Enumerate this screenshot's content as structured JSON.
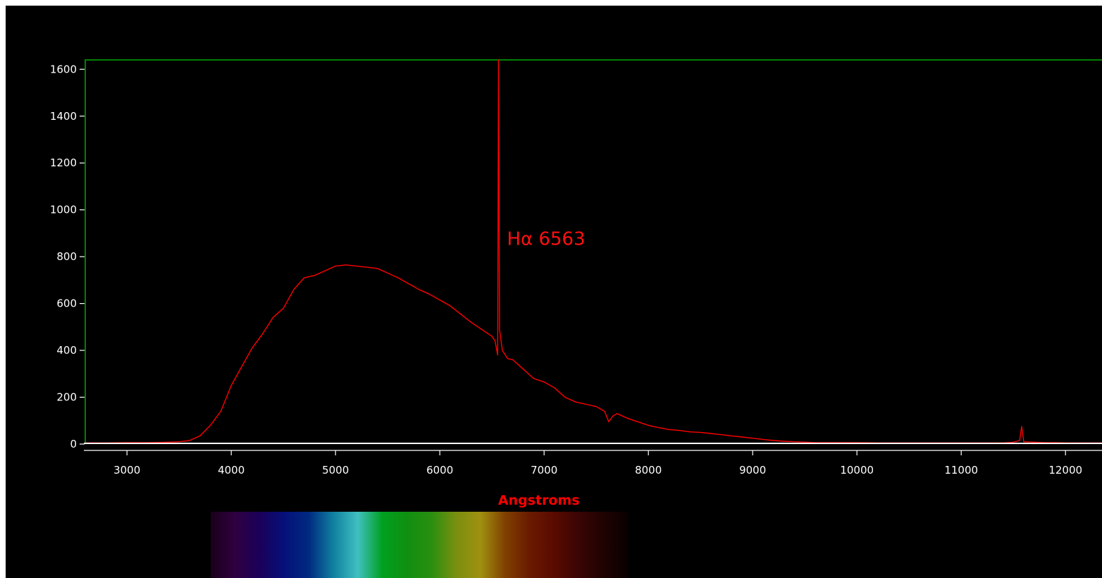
{
  "chart_data": {
    "type": "line",
    "title": "",
    "xlabel": "Angstroms",
    "ylabel": "",
    "xlim": [
      2600,
      12350
    ],
    "ylim": [
      0,
      1640
    ],
    "x_ticks": [
      3000,
      4000,
      5000,
      6000,
      7000,
      8000,
      9000,
      10000,
      11000,
      12000
    ],
    "x_tick_labels": [
      "3000",
      "4000",
      "5000",
      "6000",
      "7000",
      "8000",
      "9000",
      "10000",
      "11000",
      "12000"
    ],
    "y_ticks": [
      0,
      200,
      400,
      600,
      800,
      1000,
      1200,
      1400,
      1600
    ],
    "y_tick_labels": [
      "0",
      "200",
      "400",
      "600",
      "800",
      "1000",
      "1200",
      "1400",
      "1600"
    ],
    "grid": false,
    "legend": "none",
    "colors": {
      "series": "#ff0000",
      "axis": "#ffffff",
      "frame": "#008000",
      "background": "#000000",
      "xlabel": "#ff0000"
    },
    "series": [
      {
        "x": [
          2600,
          2800,
          3000,
          3200,
          3400,
          3500,
          3600,
          3700,
          3800,
          3900,
          4000,
          4100,
          4200,
          4300,
          4400,
          4500,
          4600,
          4700,
          4800,
          4900,
          5000,
          5100,
          5200,
          5300,
          5400,
          5500,
          5600,
          5700,
          5800,
          5900,
          6000,
          6100,
          6200,
          6300,
          6400,
          6500,
          6530,
          6555,
          6563,
          6572,
          6600,
          6650,
          6700,
          6800,
          6900,
          7000,
          7100,
          7200,
          7300,
          7400,
          7500,
          7580,
          7620,
          7660,
          7700,
          7800,
          7900,
          8000,
          8100,
          8200,
          8300,
          8400,
          8500,
          8600,
          8700,
          8800,
          8900,
          9000,
          9100,
          9200,
          9300,
          9400,
          9500,
          9600,
          9800,
          10000,
          10200,
          10400,
          10600,
          10800,
          11000,
          11200,
          11400,
          11500,
          11560,
          11580,
          11600,
          11700,
          11800,
          11900,
          12000,
          12200,
          12350
        ],
        "y": [
          5,
          5,
          6,
          6,
          8,
          10,
          15,
          35,
          80,
          140,
          250,
          330,
          410,
          470,
          540,
          580,
          660,
          710,
          720,
          740,
          760,
          765,
          760,
          755,
          750,
          730,
          710,
          685,
          660,
          640,
          615,
          590,
          555,
          520,
          490,
          460,
          440,
          380,
          1640,
          490,
          400,
          365,
          360,
          320,
          280,
          265,
          240,
          200,
          180,
          170,
          160,
          140,
          95,
          120,
          130,
          110,
          95,
          80,
          70,
          62,
          58,
          52,
          50,
          45,
          40,
          35,
          30,
          25,
          20,
          15,
          12,
          10,
          8,
          6,
          6,
          6,
          5,
          5,
          5,
          5,
          5,
          5,
          5,
          8,
          15,
          75,
          10,
          8,
          6,
          6,
          5,
          5,
          5
        ]
      }
    ],
    "annotations": [
      {
        "text": "Hα 6563",
        "x": 6563,
        "y": 1630
      }
    ],
    "spectrum_strip": {
      "x_range": [
        3500,
        7500
      ],
      "colors": [
        "#1a001a",
        "#300040",
        "#1a005a",
        "#05107a",
        "#002a80",
        "#1080a0",
        "#40c0c0",
        "#00a020",
        "#108f10",
        "#2a8f10",
        "#7a8f10",
        "#a09010",
        "#804000",
        "#6a1a00",
        "#5a0a00",
        "#3a0505",
        "#200202",
        "#0a0000"
      ]
    }
  }
}
